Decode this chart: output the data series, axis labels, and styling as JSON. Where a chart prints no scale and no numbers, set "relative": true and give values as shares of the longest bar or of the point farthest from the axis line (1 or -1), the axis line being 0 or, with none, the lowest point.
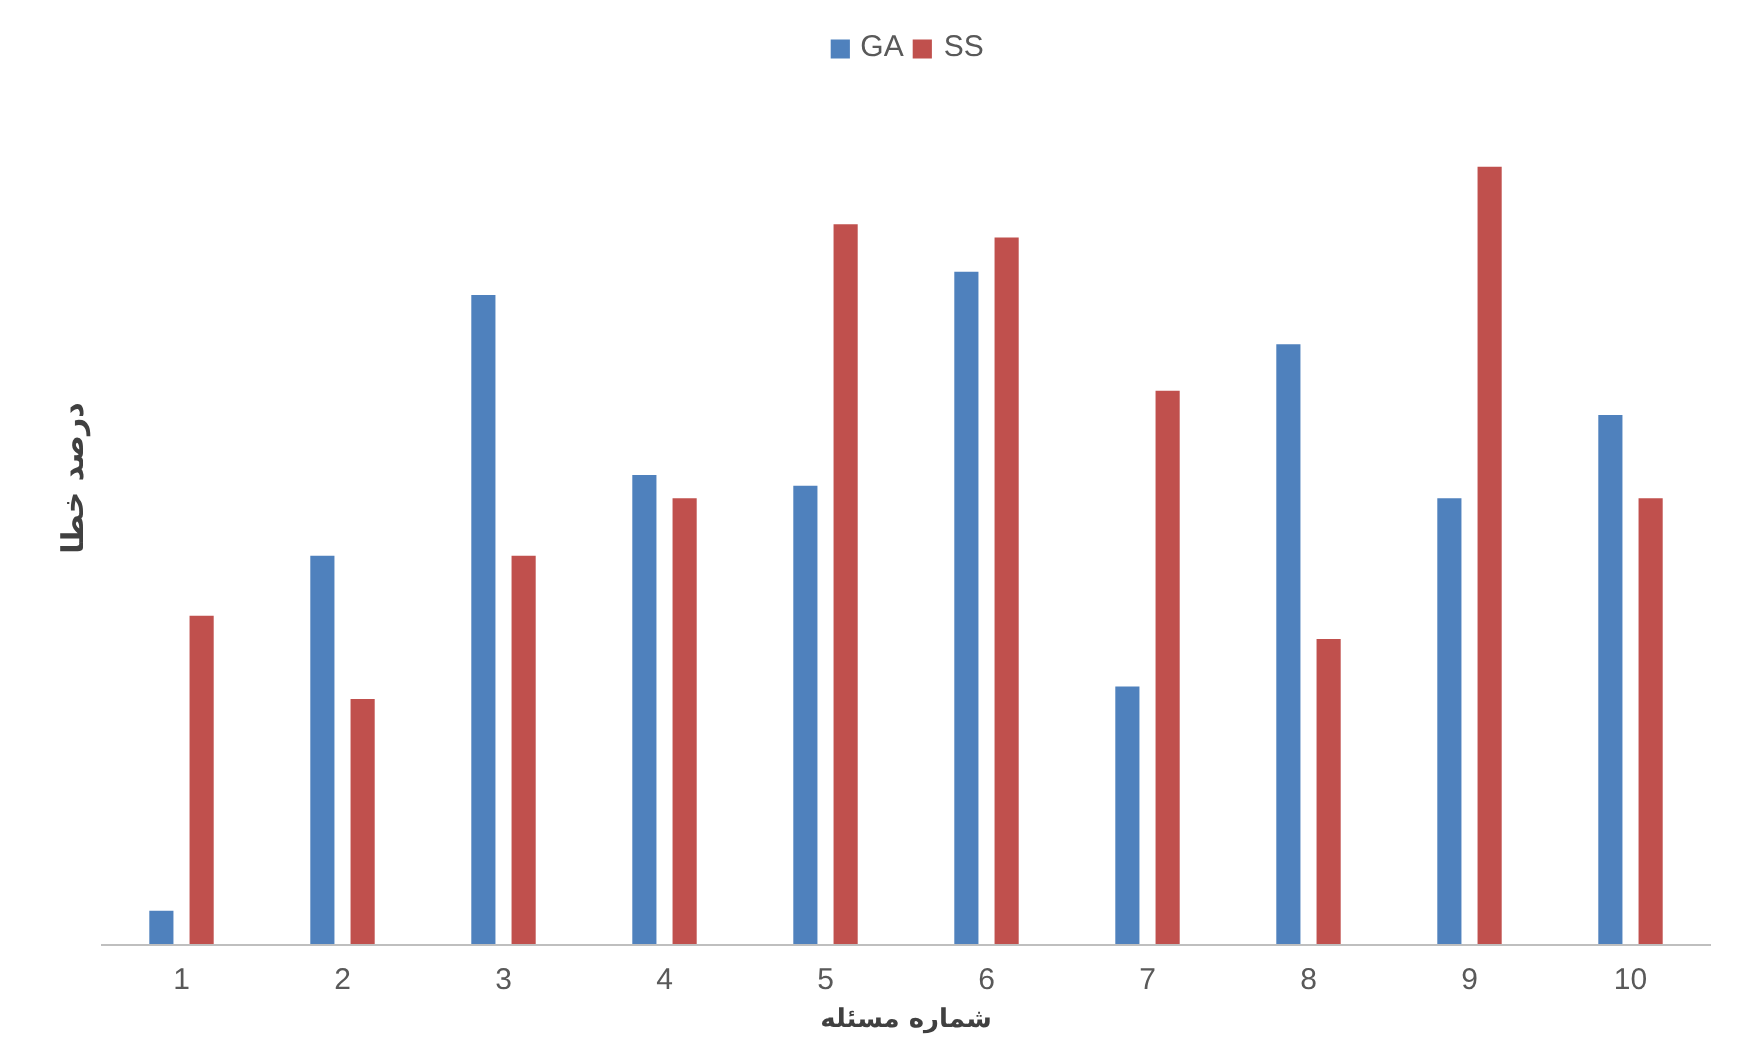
{
  "chart_data": {
    "type": "bar",
    "relative": true,
    "xlabel": "شماره مسئله",
    "ylabel": "درصد خطا",
    "categories": [
      "1",
      "2",
      "3",
      "4",
      "5",
      "6",
      "7",
      "8",
      "9",
      "10"
    ],
    "series": [
      {
        "name": "GA",
        "color": "#4f81bd",
        "values": [
          0.044,
          0.5,
          0.835,
          0.604,
          0.59,
          0.865,
          0.332,
          0.772,
          0.574,
          0.681
        ]
      },
      {
        "name": "SS",
        "color": "#c0504d",
        "values": [
          0.423,
          0.316,
          0.5,
          0.574,
          0.926,
          0.909,
          0.712,
          0.393,
          1,
          0.574
        ]
      }
    ],
    "grid": false,
    "legend": "top"
  }
}
